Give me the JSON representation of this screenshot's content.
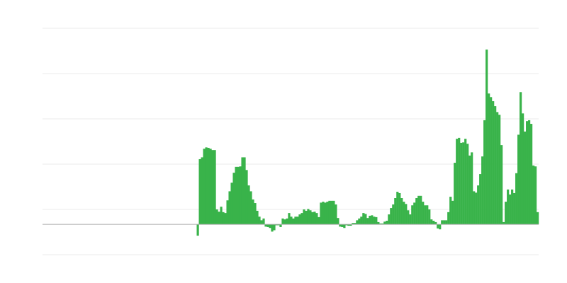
{
  "chart_data": {
    "type": "bar",
    "title": "",
    "xlabel": "",
    "ylabel": "",
    "ylim": [
      -67,
      433
    ],
    "gridlines": [
      433,
      333,
      233,
      133,
      33,
      -67
    ],
    "grid": true,
    "legend": "none",
    "bar_color": "#39b34a",
    "grid_color": "#ebebeb",
    "zero_line_color": "#aaaaaa",
    "leading_empty_fraction": 0.31,
    "values": [
      -25,
      144,
      148,
      167,
      170,
      169,
      167,
      164,
      164,
      33,
      28,
      39,
      27,
      25,
      53,
      73,
      92,
      114,
      127,
      127,
      128,
      148,
      148,
      120,
      86,
      73,
      55,
      47,
      30,
      17,
      9,
      13,
      -5,
      -6,
      -8,
      -16,
      -13,
      -2,
      -2,
      -6,
      13,
      11,
      13,
      25,
      17,
      13,
      17,
      17,
      22,
      25,
      33,
      30,
      34,
      31,
      27,
      28,
      25,
      16,
      48,
      50,
      48,
      50,
      52,
      52,
      52,
      44,
      14,
      -5,
      -6,
      -8,
      -2,
      -3,
      -3,
      3,
      3,
      9,
      13,
      17,
      25,
      23,
      14,
      19,
      20,
      17,
      16,
      5,
      2,
      2,
      6,
      8,
      22,
      36,
      44,
      58,
      72,
      69,
      58,
      50,
      45,
      31,
      22,
      42,
      48,
      58,
      63,
      63,
      50,
      42,
      42,
      33,
      11,
      8,
      5,
      -9,
      -11,
      9,
      9,
      9,
      27,
      61,
      52,
      136,
      189,
      191,
      180,
      181,
      189,
      178,
      152,
      159,
      73,
      70,
      86,
      111,
      150,
      230,
      386,
      289,
      281,
      272,
      261,
      248,
      242,
      175,
      5,
      50,
      77,
      66,
      77,
      69,
      113,
      198,
      292,
      245,
      205,
      228,
      230,
      222,
      130,
      128,
      27
    ]
  }
}
